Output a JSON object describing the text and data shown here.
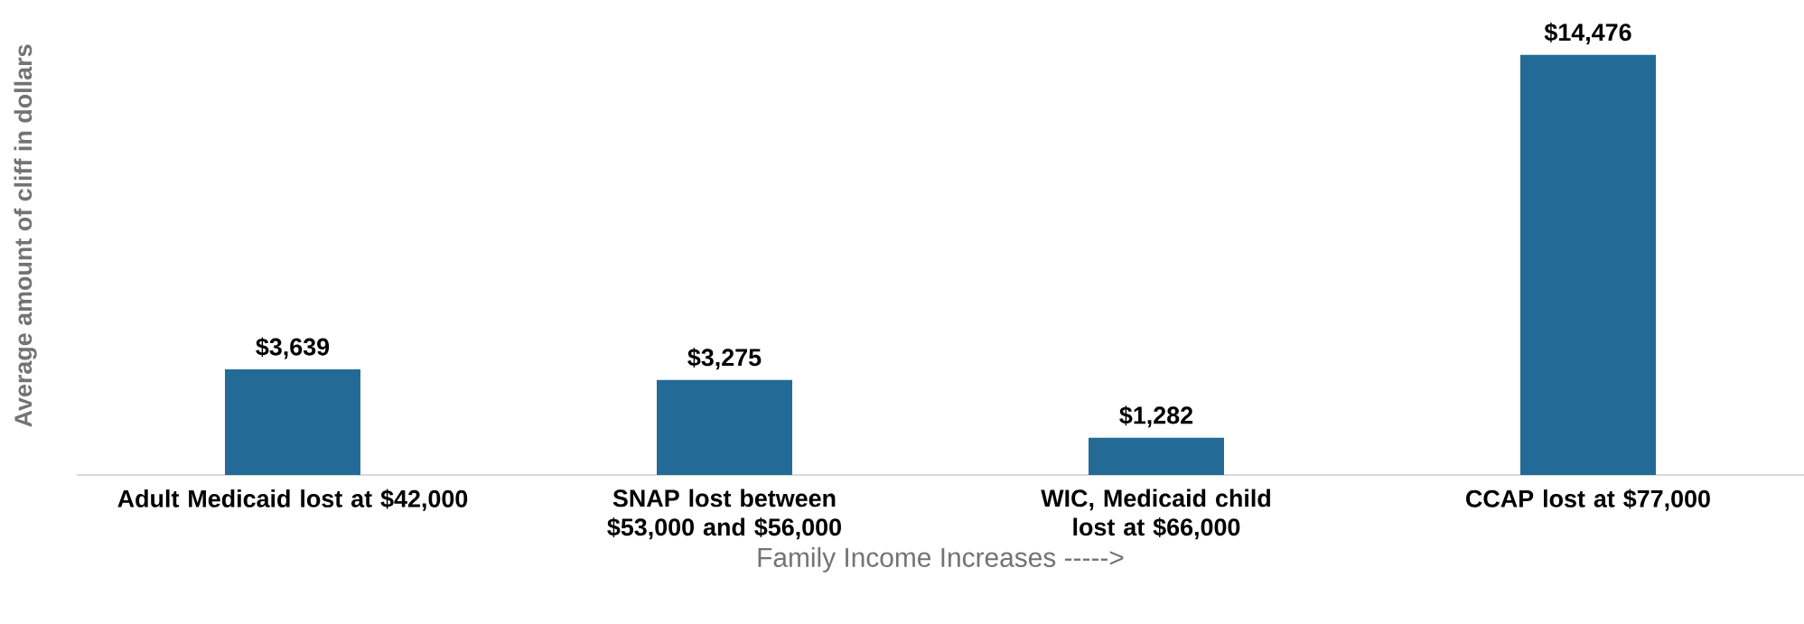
{
  "chart_data": {
    "type": "bar",
    "categories": [
      "Adult Medicaid lost at $42,000",
      "SNAP lost between $53,000 and $56,000",
      "WIC, Medicaid child lost at $66,000",
      "CCAP lost at $77,000"
    ],
    "values": [
      3639,
      3275,
      1282,
      14476
    ],
    "value_labels": [
      "$3,639",
      "$3,275",
      "$1,282",
      "$14,476"
    ],
    "color": "#236b96",
    "xlabel": "Family Income Increases ----->",
    "ylabel": "Average amount of cliff in dollars"
  }
}
